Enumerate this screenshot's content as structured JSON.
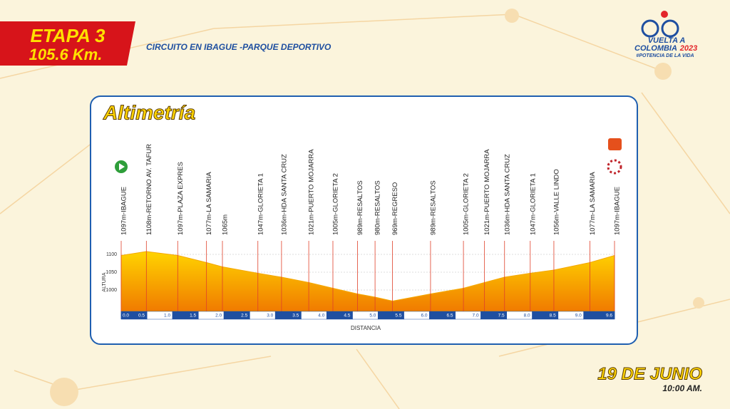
{
  "header": {
    "stage": "ETAPA 3",
    "distance": "105.6 Km.",
    "route": "CIRCUITO EN IBAGUE -PARQUE DEPORTIVO"
  },
  "logo": {
    "line1": "VUELTA A",
    "line2": "COLOMBIA",
    "year": "2023",
    "tagline": "#POTENCIA DE LA VIDA"
  },
  "footer": {
    "date": "19 DE JUNIO",
    "time": "10:00 AM."
  },
  "chart_data": {
    "type": "area",
    "title": "Altimetría",
    "x_label": "DISTANCIA",
    "y_label": "ALTURA",
    "x": [
      0,
      0.49,
      1.1,
      1.66,
      1.97,
      2.66,
      3.12,
      3.65,
      4.12,
      4.6,
      4.94,
      5.28,
      6.02,
      6.66,
      7.07,
      7.46,
      7.96,
      8.42,
      9.12,
      9.6
    ],
    "values": [
      1097,
      1108,
      1097,
      1077,
      1065,
      1047,
      1036,
      1021,
      1005,
      989,
      980,
      969,
      989,
      1005,
      1021,
      1036,
      1047,
      1056,
      1077,
      1097
    ],
    "value_labels": [
      "1097m-IBAGUE",
      "1108m-RETORNO AV. TAFUR",
      "1097m-PLAZA EXPRES",
      "1077m-LA SAMARIA",
      "1065m",
      "1047m-GLORIETA 1",
      "1036m-HDA SANTA CRUZ",
      "1021m-PUERTO MOJARRA",
      "1005m-GLORIETA 2",
      "989m-RESALTOS",
      "980m-RESALTOS",
      "969m-REGRESO",
      "989m-RESALTOS",
      "1005m-GLORIETA 2",
      "1021m-PUERTO MOJARRA",
      "1036m-HDA SANTA CRUZ",
      "1047m-GLORIETA 1",
      "1056m-VALLE LINDO",
      "1077m-LA SAMARIA",
      "1097m-IBAGUE"
    ],
    "xlim": [
      0,
      9.6
    ],
    "xticks": [
      {
        "value": 0,
        "label": "0.0"
      },
      0.5,
      {
        "value": 1,
        "label": "1.0"
      },
      1.5,
      {
        "value": 2,
        "label": "2.0"
      },
      2.5,
      {
        "value": 3,
        "label": "3.0"
      },
      3.5,
      {
        "value": 4,
        "label": "4.0"
      },
      4.5,
      {
        "value": 5,
        "label": "5.0"
      },
      5.5,
      {
        "value": 6,
        "label": "6.0"
      },
      6.5,
      {
        "value": 7,
        "label": "7.0"
      },
      7.5,
      {
        "value": 8,
        "label": "8.0"
      },
      8.5,
      {
        "value": 9,
        "label": "9.0"
      },
      9.6
    ],
    "ylim": [
      940,
      1110
    ],
    "yticks": [
      1000,
      1050,
      1100
    ],
    "grid": true,
    "color": "#f5a800"
  }
}
